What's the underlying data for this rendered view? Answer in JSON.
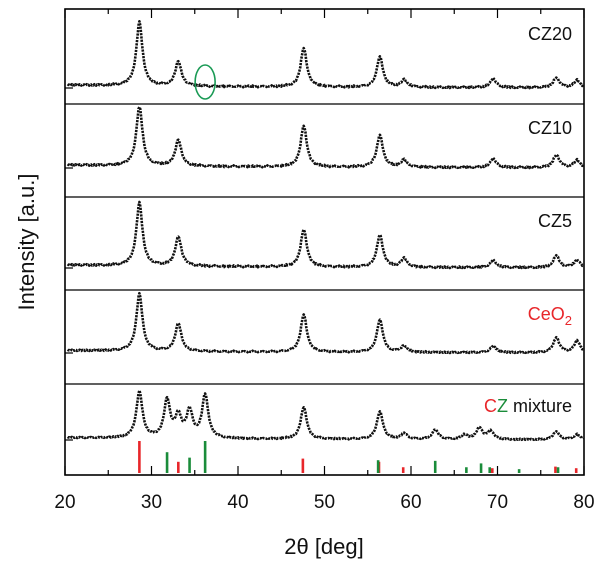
{
  "chart_data": {
    "type": "line",
    "x_label": "2θ [deg]",
    "y_label": "Intensity [a.u.]",
    "xlim": [
      20,
      80
    ],
    "x_ticks": [
      "20",
      "30",
      "40",
      "50",
      "60",
      "70",
      "80"
    ],
    "grid": false,
    "panels": [
      {
        "label": "CZ20",
        "peaks": [
          {
            "x": 28.6,
            "y": 0.85
          },
          {
            "x": 33.1,
            "y": 0.33
          },
          {
            "x": 47.6,
            "y": 0.52
          },
          {
            "x": 56.4,
            "y": 0.41
          },
          {
            "x": 59.2,
            "y": 0.1
          },
          {
            "x": 69.5,
            "y": 0.12
          },
          {
            "x": 76.8,
            "y": 0.13
          },
          {
            "x": 79.2,
            "y": 0.1
          }
        ],
        "highlight_circle_x": 36.2
      },
      {
        "label": "CZ10",
        "peaks": [
          {
            "x": 28.6,
            "y": 0.8
          },
          {
            "x": 33.1,
            "y": 0.35
          },
          {
            "x": 47.6,
            "y": 0.55
          },
          {
            "x": 56.4,
            "y": 0.43
          },
          {
            "x": 59.2,
            "y": 0.1
          },
          {
            "x": 69.5,
            "y": 0.12
          },
          {
            "x": 76.8,
            "y": 0.17
          },
          {
            "x": 79.2,
            "y": 0.1
          }
        ]
      },
      {
        "label": "CZ5",
        "peaks": [
          {
            "x": 28.6,
            "y": 0.84
          },
          {
            "x": 33.1,
            "y": 0.39
          },
          {
            "x": 47.6,
            "y": 0.5
          },
          {
            "x": 56.4,
            "y": 0.43
          },
          {
            "x": 59.2,
            "y": 0.12
          },
          {
            "x": 69.5,
            "y": 0.1
          },
          {
            "x": 76.8,
            "y": 0.16
          },
          {
            "x": 79.2,
            "y": 0.1
          }
        ]
      },
      {
        "label": "CeO2",
        "peaks": [
          {
            "x": 28.6,
            "y": 0.88
          },
          {
            "x": 33.1,
            "y": 0.43
          },
          {
            "x": 47.6,
            "y": 0.58
          },
          {
            "x": 56.4,
            "y": 0.5
          },
          {
            "x": 59.2,
            "y": 0.1
          },
          {
            "x": 69.5,
            "y": 0.1
          },
          {
            "x": 76.8,
            "y": 0.23
          },
          {
            "x": 79.2,
            "y": 0.18
          }
        ]
      },
      {
        "label": "CZ mixture",
        "peaks": [
          {
            "x": 28.6,
            "y": 0.8
          },
          {
            "x": 31.8,
            "y": 0.65
          },
          {
            "x": 33.1,
            "y": 0.37
          },
          {
            "x": 34.4,
            "y": 0.46
          },
          {
            "x": 36.2,
            "y": 0.75
          },
          {
            "x": 47.6,
            "y": 0.55
          },
          {
            "x": 56.4,
            "y": 0.48
          },
          {
            "x": 59.2,
            "y": 0.1
          },
          {
            "x": 62.8,
            "y": 0.17
          },
          {
            "x": 66.2,
            "y": 0.08
          },
          {
            "x": 67.9,
            "y": 0.2
          },
          {
            "x": 69.2,
            "y": 0.14
          },
          {
            "x": 76.8,
            "y": 0.14
          },
          {
            "x": 79.2,
            "y": 0.09
          }
        ],
        "reference_lines": {
          "CeO2": [
            {
              "x": 28.6,
              "h": 1.0
            },
            {
              "x": 33.1,
              "h": 0.35
            },
            {
              "x": 47.5,
              "h": 0.45
            },
            {
              "x": 56.3,
              "h": 0.35
            },
            {
              "x": 59.1,
              "h": 0.18
            },
            {
              "x": 69.4,
              "h": 0.15
            },
            {
              "x": 76.7,
              "h": 0.2
            },
            {
              "x": 79.1,
              "h": 0.15
            }
          ],
          "ZrO2": [
            {
              "x": 31.8,
              "h": 0.65
            },
            {
              "x": 34.4,
              "h": 0.48
            },
            {
              "x": 36.2,
              "h": 1.0
            },
            {
              "x": 56.2,
              "h": 0.4
            },
            {
              "x": 62.8,
              "h": 0.38
            },
            {
              "x": 66.4,
              "h": 0.18
            },
            {
              "x": 68.1,
              "h": 0.3
            },
            {
              "x": 69.1,
              "h": 0.18
            },
            {
              "x": 72.5,
              "h": 0.12
            },
            {
              "x": 77.0,
              "h": 0.18
            }
          ]
        }
      }
    ]
  },
  "labels": {
    "p0": "CZ20",
    "p1": "CZ10",
    "p2": "CZ5",
    "p3_main": "CeO",
    "p3_sub": "2",
    "p4_c": "C",
    "p4_z": "Z",
    "p4_rest": " mixture"
  },
  "colors": {
    "ceo2": "#e8262a",
    "zro2": "#1a8c3a",
    "trace": "#111111",
    "circle": "#1a9a55"
  }
}
